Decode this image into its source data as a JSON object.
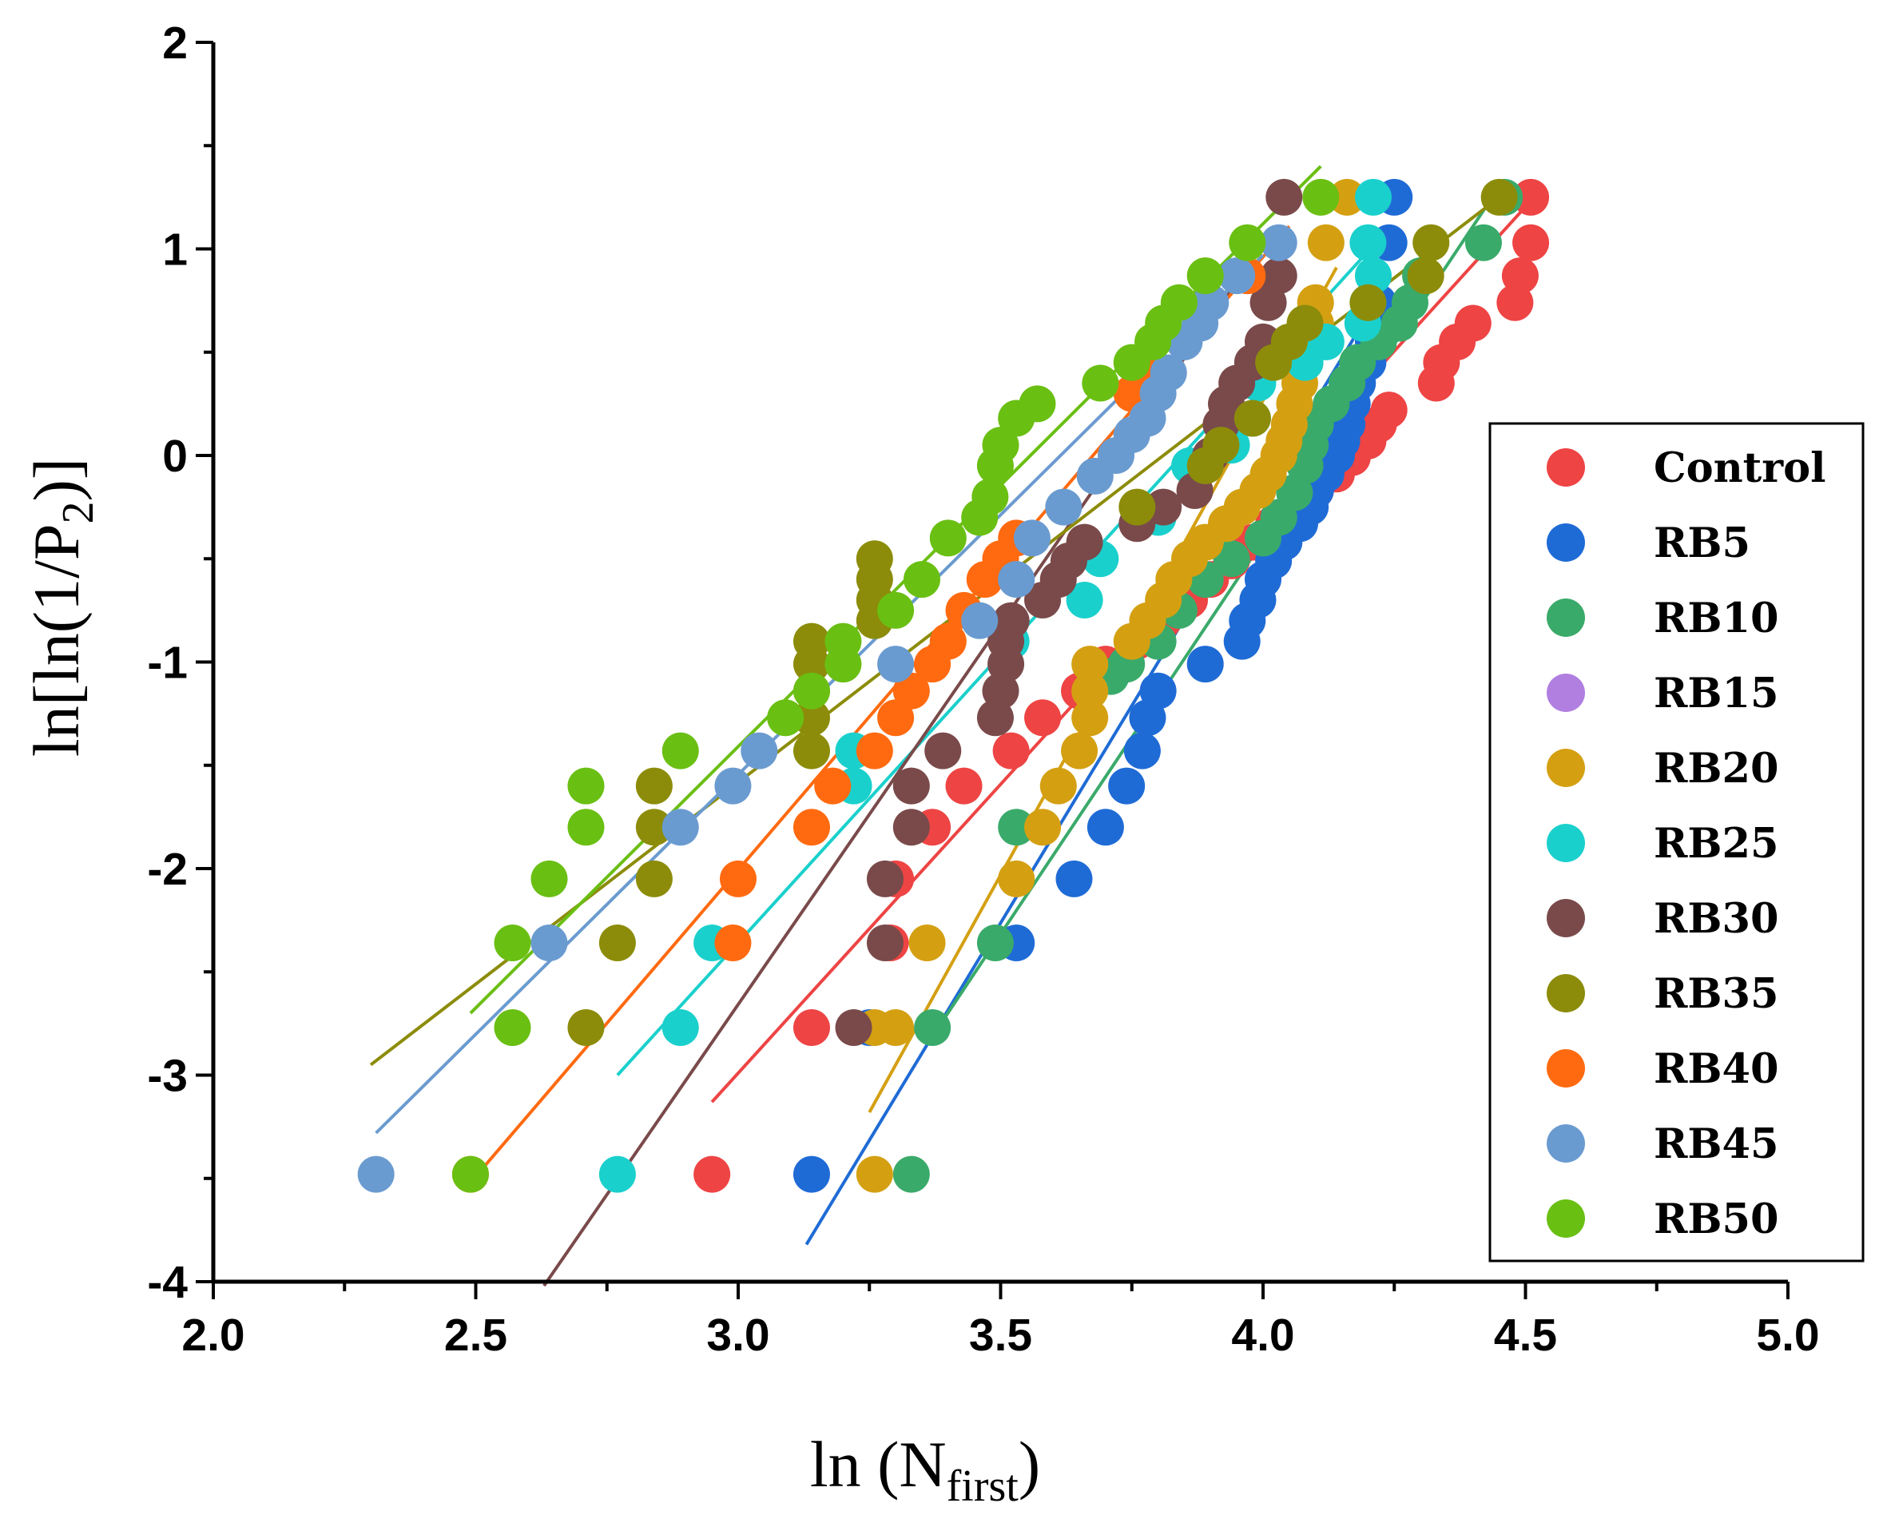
{
  "chart_data": {
    "type": "scatter",
    "title": "",
    "xlabel": {
      "main": "ln (N",
      "sub": "first",
      "close": ")"
    },
    "ylabel": {
      "main": "ln[ln(1/P",
      "sub": "2",
      "close": ")]"
    },
    "xlim": [
      2.0,
      5.0
    ],
    "ylim": [
      -4,
      2
    ],
    "x_ticks": [
      "2.0",
      "2.5",
      "3.0",
      "3.5",
      "4.0",
      "4.5",
      "5.0"
    ],
    "y_ticks": [
      "2",
      "1",
      "0",
      "-1",
      "-2",
      "-3",
      "-4"
    ],
    "legend_position": "right",
    "series": [
      {
        "name": "Control",
        "color": "#ee4444",
        "points": [
          [
            2.95,
            -3.48
          ],
          [
            3.14,
            -2.77
          ],
          [
            3.29,
            -2.36
          ],
          [
            3.3,
            -2.05
          ],
          [
            3.37,
            -1.8
          ],
          [
            3.43,
            -1.6
          ],
          [
            3.52,
            -1.43
          ],
          [
            3.58,
            -1.27
          ],
          [
            3.65,
            -1.14
          ],
          [
            3.7,
            -1.01
          ],
          [
            3.76,
            -0.9
          ],
          [
            3.81,
            -0.8
          ],
          [
            3.86,
            -0.7
          ],
          [
            3.9,
            -0.6
          ],
          [
            3.94,
            -0.51
          ],
          [
            3.98,
            -0.42
          ],
          [
            4.02,
            -0.33
          ],
          [
            4.06,
            -0.25
          ],
          [
            4.1,
            -0.17
          ],
          [
            4.14,
            -0.09
          ],
          [
            4.17,
            -0.01
          ],
          [
            4.2,
            0.07
          ],
          [
            4.22,
            0.15
          ],
          [
            4.24,
            0.22
          ],
          [
            4.33,
            0.35
          ],
          [
            4.34,
            0.45
          ],
          [
            4.37,
            0.55
          ],
          [
            4.4,
            0.64
          ],
          [
            4.48,
            0.74
          ],
          [
            4.49,
            0.87
          ],
          [
            4.51,
            1.03
          ],
          [
            4.51,
            1.25
          ]
        ],
        "fit": [
          [
            2.95,
            -3.13
          ],
          [
            4.52,
            1.26
          ]
        ]
      },
      {
        "name": "RB5",
        "color": "#1f6bd6",
        "points": [
          [
            3.14,
            -3.48
          ],
          [
            3.25,
            -2.77
          ],
          [
            3.53,
            -2.36
          ],
          [
            3.64,
            -2.05
          ],
          [
            3.7,
            -1.8
          ],
          [
            3.74,
            -1.6
          ],
          [
            3.77,
            -1.43
          ],
          [
            3.78,
            -1.27
          ],
          [
            3.8,
            -1.14
          ],
          [
            3.89,
            -1.01
          ],
          [
            3.96,
            -0.9
          ],
          [
            3.97,
            -0.8
          ],
          [
            3.99,
            -0.7
          ],
          [
            4.0,
            -0.6
          ],
          [
            4.02,
            -0.51
          ],
          [
            4.04,
            -0.42
          ],
          [
            4.07,
            -0.33
          ],
          [
            4.09,
            -0.25
          ],
          [
            4.1,
            -0.17
          ],
          [
            4.12,
            -0.09
          ],
          [
            4.14,
            0.0
          ],
          [
            4.15,
            0.07
          ],
          [
            4.16,
            0.15
          ],
          [
            4.17,
            0.25
          ],
          [
            4.18,
            0.35
          ],
          [
            4.2,
            0.45
          ],
          [
            4.21,
            0.55
          ],
          [
            4.22,
            0.64
          ],
          [
            4.22,
            0.74
          ],
          [
            4.24,
            1.03
          ],
          [
            4.25,
            1.25
          ]
        ],
        "fit": [
          [
            3.13,
            -3.82
          ],
          [
            4.24,
            0.85
          ]
        ]
      },
      {
        "name": "RB10",
        "color": "#3aaa6a",
        "points": [
          [
            3.33,
            -3.48
          ],
          [
            3.37,
            -2.77
          ],
          [
            3.49,
            -2.36
          ],
          [
            3.53,
            -1.8
          ],
          [
            3.71,
            -1.07
          ],
          [
            3.74,
            -1.01
          ],
          [
            3.8,
            -0.9
          ],
          [
            3.84,
            -0.75
          ],
          [
            3.89,
            -0.6
          ],
          [
            3.94,
            -0.5
          ],
          [
            4.0,
            -0.4
          ],
          [
            4.03,
            -0.3
          ],
          [
            4.06,
            -0.18
          ],
          [
            4.08,
            -0.05
          ],
          [
            4.09,
            0.05
          ],
          [
            4.1,
            0.15
          ],
          [
            4.13,
            0.25
          ],
          [
            4.16,
            0.35
          ],
          [
            4.18,
            0.45
          ],
          [
            4.22,
            0.55
          ],
          [
            4.26,
            0.64
          ],
          [
            4.28,
            0.74
          ],
          [
            4.3,
            0.87
          ],
          [
            4.42,
            1.03
          ],
          [
            4.46,
            1.25
          ]
        ],
        "fit": [
          [
            3.36,
            -2.85
          ],
          [
            4.45,
            1.3
          ]
        ]
      },
      {
        "name": "RB15",
        "color": "#b07fe0",
        "points": [],
        "fit": []
      },
      {
        "name": "RB20",
        "color": "#d4a012",
        "points": [
          [
            3.26,
            -3.48
          ],
          [
            3.26,
            -2.77
          ],
          [
            3.3,
            -2.77
          ],
          [
            3.36,
            -2.36
          ],
          [
            3.53,
            -2.05
          ],
          [
            3.58,
            -1.8
          ],
          [
            3.61,
            -1.6
          ],
          [
            3.65,
            -1.43
          ],
          [
            3.67,
            -1.27
          ],
          [
            3.67,
            -1.14
          ],
          [
            3.67,
            -1.01
          ],
          [
            3.75,
            -0.9
          ],
          [
            3.78,
            -0.8
          ],
          [
            3.81,
            -0.7
          ],
          [
            3.83,
            -0.6
          ],
          [
            3.86,
            -0.5
          ],
          [
            3.89,
            -0.42
          ],
          [
            3.93,
            -0.33
          ],
          [
            3.96,
            -0.25
          ],
          [
            3.99,
            -0.17
          ],
          [
            4.01,
            -0.09
          ],
          [
            4.03,
            0.0
          ],
          [
            4.04,
            0.07
          ],
          [
            4.05,
            0.15
          ],
          [
            4.06,
            0.25
          ],
          [
            4.07,
            0.35
          ],
          [
            4.08,
            0.45
          ],
          [
            4.09,
            0.55
          ],
          [
            4.1,
            0.64
          ],
          [
            4.1,
            0.74
          ],
          [
            4.12,
            1.03
          ],
          [
            4.16,
            1.25
          ]
        ],
        "fit": [
          [
            3.25,
            -3.18
          ],
          [
            4.14,
            0.91
          ]
        ]
      },
      {
        "name": "RB25",
        "color": "#1ad0cc",
        "points": [
          [
            2.77,
            -3.48
          ],
          [
            2.89,
            -2.77
          ],
          [
            2.95,
            -2.36
          ],
          [
            3.22,
            -1.6
          ],
          [
            3.22,
            -1.43
          ],
          [
            3.52,
            -0.9
          ],
          [
            3.66,
            -0.7
          ],
          [
            3.69,
            -0.5
          ],
          [
            3.8,
            -0.3
          ],
          [
            3.86,
            -0.05
          ],
          [
            3.94,
            0.05
          ],
          [
            3.98,
            0.18
          ],
          [
            3.99,
            0.35
          ],
          [
            4.08,
            0.45
          ],
          [
            4.12,
            0.55
          ],
          [
            4.19,
            0.64
          ],
          [
            4.2,
            0.74
          ],
          [
            4.21,
            0.87
          ],
          [
            4.2,
            1.03
          ],
          [
            4.21,
            1.25
          ]
        ],
        "fit": [
          [
            2.77,
            -3.0
          ],
          [
            4.19,
            0.96
          ]
        ]
      },
      {
        "name": "RB30",
        "color": "#7a4a4a",
        "points": [
          [
            3.22,
            -2.77
          ],
          [
            3.28,
            -2.36
          ],
          [
            3.28,
            -2.05
          ],
          [
            3.33,
            -1.8
          ],
          [
            3.33,
            -1.6
          ],
          [
            3.39,
            -1.43
          ],
          [
            3.49,
            -1.27
          ],
          [
            3.5,
            -1.14
          ],
          [
            3.51,
            -1.01
          ],
          [
            3.51,
            -0.9
          ],
          [
            3.52,
            -0.8
          ],
          [
            3.58,
            -0.7
          ],
          [
            3.61,
            -0.6
          ],
          [
            3.63,
            -0.51
          ],
          [
            3.66,
            -0.42
          ],
          [
            3.76,
            -0.33
          ],
          [
            3.81,
            -0.25
          ],
          [
            3.87,
            -0.17
          ],
          [
            3.9,
            0.0
          ],
          [
            3.92,
            0.15
          ],
          [
            3.93,
            0.25
          ],
          [
            3.95,
            0.35
          ],
          [
            3.98,
            0.45
          ],
          [
            4.0,
            0.55
          ],
          [
            4.01,
            0.74
          ],
          [
            4.03,
            0.87
          ],
          [
            4.04,
            1.25
          ]
        ],
        "fit": [
          [
            2.63,
            -4.02
          ],
          [
            3.98,
            0.95
          ]
        ]
      },
      {
        "name": "RB35",
        "color": "#8c8c0a",
        "points": [
          [
            2.71,
            -2.77
          ],
          [
            2.77,
            -2.36
          ],
          [
            2.84,
            -2.05
          ],
          [
            2.84,
            -1.8
          ],
          [
            2.84,
            -1.6
          ],
          [
            3.14,
            -1.43
          ],
          [
            3.14,
            -1.27
          ],
          [
            3.14,
            -1.14
          ],
          [
            3.14,
            -1.01
          ],
          [
            3.14,
            -0.9
          ],
          [
            3.26,
            -0.8
          ],
          [
            3.26,
            -0.7
          ],
          [
            3.26,
            -0.6
          ],
          [
            3.26,
            -0.5
          ],
          [
            3.76,
            -0.25
          ],
          [
            3.89,
            -0.05
          ],
          [
            3.92,
            0.05
          ],
          [
            3.98,
            0.18
          ],
          [
            4.02,
            0.45
          ],
          [
            4.05,
            0.55
          ],
          [
            4.08,
            0.64
          ],
          [
            4.2,
            0.74
          ],
          [
            4.31,
            0.87
          ],
          [
            4.32,
            1.03
          ],
          [
            4.45,
            1.25
          ]
        ],
        "fit": [
          [
            2.3,
            -2.95
          ],
          [
            4.45,
            1.25
          ]
        ]
      },
      {
        "name": "RB40",
        "color": "#ff6a10",
        "points": [
          [
            2.49,
            -3.48
          ],
          [
            2.99,
            -2.36
          ],
          [
            3.0,
            -2.05
          ],
          [
            3.14,
            -1.8
          ],
          [
            3.18,
            -1.6
          ],
          [
            3.26,
            -1.43
          ],
          [
            3.3,
            -1.27
          ],
          [
            3.33,
            -1.14
          ],
          [
            3.37,
            -1.01
          ],
          [
            3.4,
            -0.9
          ],
          [
            3.43,
            -0.75
          ],
          [
            3.47,
            -0.6
          ],
          [
            3.5,
            -0.5
          ],
          [
            3.53,
            -0.4
          ],
          [
            3.75,
            0.3
          ],
          [
            3.78,
            0.4
          ],
          [
            3.97,
            0.87
          ]
        ],
        "fit": [
          [
            2.49,
            -3.52
          ],
          [
            4.05,
            1.11
          ]
        ]
      },
      {
        "name": "RB45",
        "color": "#6a9bd0",
        "points": [
          [
            2.31,
            -3.48
          ],
          [
            2.64,
            -2.36
          ],
          [
            2.89,
            -1.8
          ],
          [
            2.99,
            -1.6
          ],
          [
            3.04,
            -1.43
          ],
          [
            3.3,
            -1.01
          ],
          [
            3.46,
            -0.8
          ],
          [
            3.53,
            -0.6
          ],
          [
            3.56,
            -0.4
          ],
          [
            3.62,
            -0.25
          ],
          [
            3.68,
            -0.1
          ],
          [
            3.72,
            0.0
          ],
          [
            3.75,
            0.1
          ],
          [
            3.78,
            0.18
          ],
          [
            3.8,
            0.3
          ],
          [
            3.82,
            0.4
          ],
          [
            3.85,
            0.55
          ],
          [
            3.88,
            0.64
          ],
          [
            3.9,
            0.74
          ],
          [
            3.95,
            0.87
          ],
          [
            4.03,
            1.03
          ]
        ],
        "fit": [
          [
            2.31,
            -3.28
          ],
          [
            4.0,
            0.97
          ]
        ]
      },
      {
        "name": "RB50",
        "color": "#6abf13",
        "points": [
          [
            2.49,
            -3.48
          ],
          [
            2.57,
            -2.77
          ],
          [
            2.57,
            -2.36
          ],
          [
            2.64,
            -2.05
          ],
          [
            2.71,
            -1.8
          ],
          [
            2.71,
            -1.6
          ],
          [
            2.89,
            -1.43
          ],
          [
            3.09,
            -1.27
          ],
          [
            3.14,
            -1.14
          ],
          [
            3.2,
            -1.01
          ],
          [
            3.2,
            -0.9
          ],
          [
            3.3,
            -0.75
          ],
          [
            3.35,
            -0.6
          ],
          [
            3.4,
            -0.4
          ],
          [
            3.46,
            -0.3
          ],
          [
            3.48,
            -0.2
          ],
          [
            3.49,
            -0.05
          ],
          [
            3.5,
            0.05
          ],
          [
            3.53,
            0.18
          ],
          [
            3.57,
            0.25
          ],
          [
            3.69,
            0.35
          ],
          [
            3.75,
            0.45
          ],
          [
            3.79,
            0.55
          ],
          [
            3.81,
            0.64
          ],
          [
            3.84,
            0.74
          ],
          [
            3.89,
            0.87
          ],
          [
            3.97,
            1.03
          ],
          [
            4.11,
            1.25
          ]
        ],
        "fit": [
          [
            2.49,
            -2.7
          ],
          [
            4.11,
            1.4
          ]
        ]
      }
    ]
  }
}
